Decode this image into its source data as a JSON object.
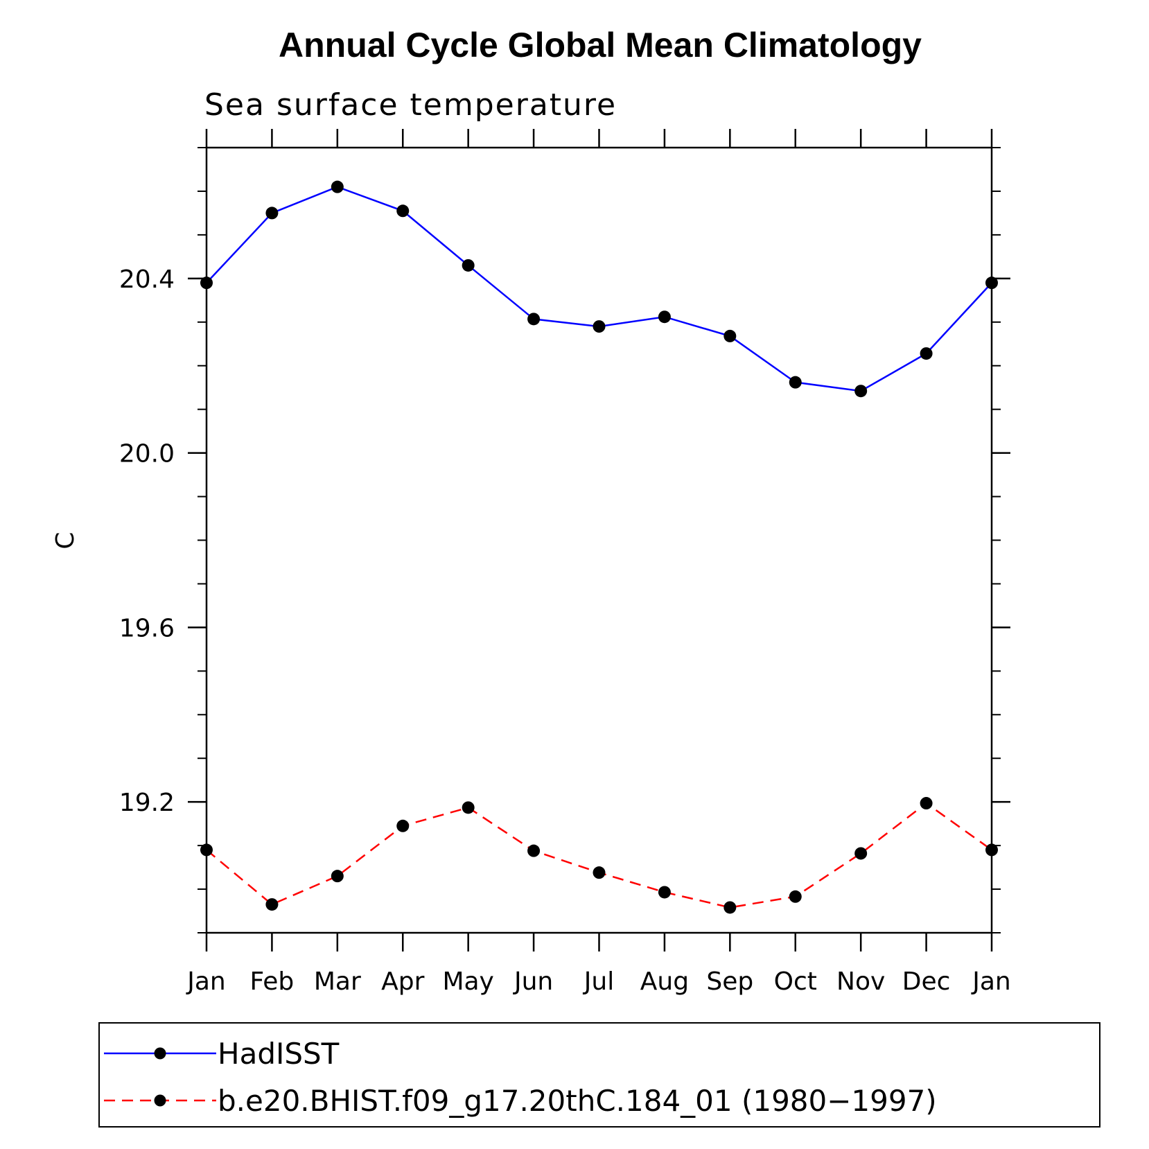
{
  "chart_data": {
    "type": "line",
    "title": "Annual Cycle Global Mean Climatology",
    "subtitle": "Sea surface temperature",
    "xlabel": "",
    "ylabel": "C",
    "categories": [
      "Jan",
      "Feb",
      "Mar",
      "Apr",
      "May",
      "Jun",
      "Jul",
      "Aug",
      "Sep",
      "Oct",
      "Nov",
      "Dec",
      "Jan"
    ],
    "yticks": [
      "19.2",
      "19.6",
      "20.0",
      "20.4"
    ],
    "ylim": [
      18.9,
      20.7
    ],
    "grid": false,
    "legend_position": "bottom",
    "series": [
      {
        "name": "HadISST",
        "color": "#0000ff",
        "line_style": "solid",
        "marker": "filled-circle",
        "values": [
          20.39,
          20.55,
          20.61,
          20.555,
          20.43,
          20.307,
          20.29,
          20.312,
          20.268,
          20.162,
          20.142,
          20.228,
          20.39
        ]
      },
      {
        "name": "b.e20.BHIST.f09_g17.20thC.184_01 (1980−1997)",
        "color": "#ff0000",
        "line_style": "dashed",
        "marker": "filled-circle",
        "values": [
          19.09,
          18.965,
          19.03,
          19.145,
          19.187,
          19.088,
          19.038,
          18.993,
          18.958,
          18.983,
          19.082,
          19.197,
          19.09
        ]
      }
    ]
  }
}
